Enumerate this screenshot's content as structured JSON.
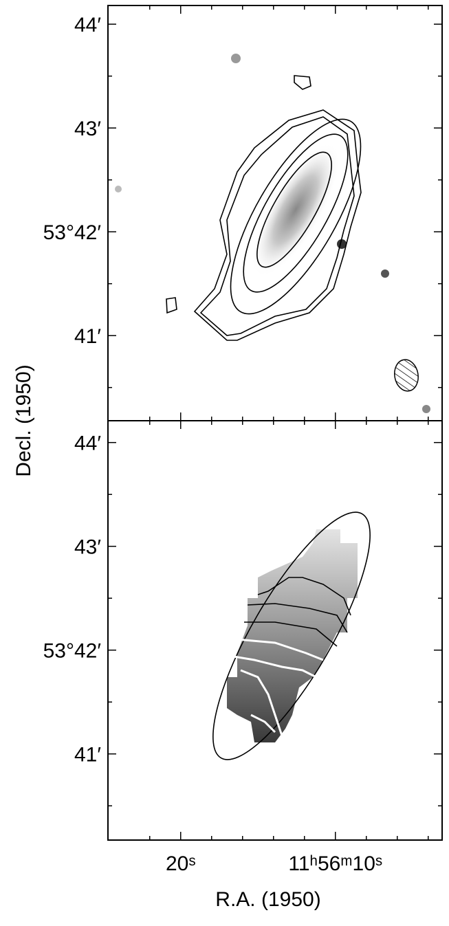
{
  "chart_data": [
    {
      "type": "image",
      "y_label": "Decl. (1950)",
      "xlim": [
        24.7,
        3.1
      ],
      "ylim": [
        40.18,
        44.18
      ],
      "xticks": [
        {
          "value": 20,
          "label": "20ˢ"
        },
        {
          "value": 10,
          "label": "11ʰ56ᵐ10ˢ"
        }
      ],
      "x_minor_ticks": [
        22,
        18,
        16,
        14,
        12,
        8,
        6,
        4
      ],
      "yticks": [
        {
          "value": 44,
          "label": "44′"
        },
        {
          "value": 43,
          "label": "43′"
        },
        {
          "value": 42,
          "label": "53°42′"
        },
        {
          "value": 41,
          "label": "41′"
        }
      ],
      "y_minor_ticks": [
        43.5,
        42.5,
        41.5,
        40.5
      ]
    },
    {
      "type": "image",
      "x_label": "R.A. (1950)",
      "xlim": [
        24.7,
        3.1
      ],
      "ylim": [
        40.17,
        44.21
      ],
      "xticks": [
        {
          "value": 20,
          "label": "20ˢ"
        },
        {
          "value": 10,
          "label": "11ʰ56ᵐ10ˢ"
        }
      ],
      "x_minor_ticks": [
        22,
        18,
        16,
        14,
        12,
        8,
        6,
        4
      ],
      "yticks": [
        {
          "value": 44,
          "label": "44′"
        },
        {
          "value": 43,
          "label": "43′"
        },
        {
          "value": 42,
          "label": "53°42′"
        },
        {
          "value": 41,
          "label": "41′"
        }
      ],
      "y_minor_ticks": [
        43.5,
        42.5,
        41.5,
        40.5
      ]
    }
  ]
}
